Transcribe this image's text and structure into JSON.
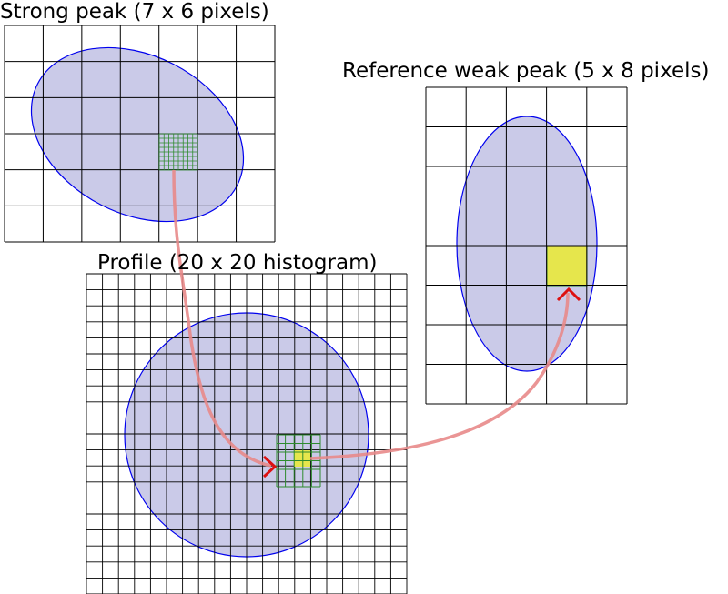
{
  "labels": {
    "strong": "Strong peak (7 x 6 pixels)",
    "reference": "Reference weak peak (5 x 8 pixels)",
    "profile": "Profile (20 x 20 histogram)"
  },
  "colors": {
    "ellipse_fill": "#c4c4e6",
    "ellipse_stroke": "#0000ee",
    "grid_line": "#000000",
    "subgrid_line": "#2e8b2e",
    "highlight": "#e6e64c",
    "arrow": "#e88a8a",
    "arrow_head": "#dd1111"
  },
  "grids": {
    "strong": {
      "cols": 7,
      "rows": 6
    },
    "reference": {
      "cols": 5,
      "rows": 8
    },
    "profile": {
      "cols": 20,
      "rows": 20
    }
  }
}
